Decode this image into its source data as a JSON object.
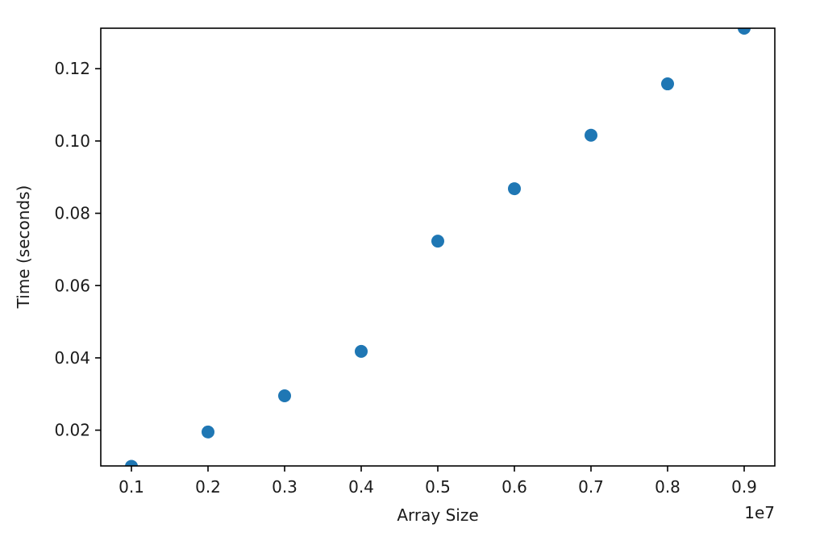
{
  "chart_data": {
    "type": "scatter",
    "title": "",
    "xlabel": "Array Size",
    "ylabel": "Time (seconds)",
    "x_offset_label": "1e7",
    "xlim": [
      0.06,
      0.94
    ],
    "ylim": [
      0.0101,
      0.1312
    ],
    "x_ticks": [
      0.1,
      0.2,
      0.3,
      0.4,
      0.5,
      0.6,
      0.7,
      0.8,
      0.9
    ],
    "x_tick_labels": [
      "0.1",
      "0.2",
      "0.3",
      "0.4",
      "0.5",
      "0.6",
      "0.7",
      "0.8",
      "0.9"
    ],
    "y_ticks": [
      0.02,
      0.04,
      0.06,
      0.08,
      0.1,
      0.12
    ],
    "y_tick_labels": [
      "0.02",
      "0.04",
      "0.06",
      "0.08",
      "0.10",
      "0.12"
    ],
    "grid": false,
    "legend": "none",
    "marker_color": "#1f77b4",
    "series": [
      {
        "x": [
          0.1,
          0.2,
          0.3,
          0.4,
          0.5,
          0.6,
          0.7,
          0.8,
          0.9
        ],
        "y": [
          0.01,
          0.0195,
          0.0295,
          0.0418,
          0.0723,
          0.0868,
          0.1016,
          0.1158,
          0.1312
        ]
      }
    ]
  }
}
